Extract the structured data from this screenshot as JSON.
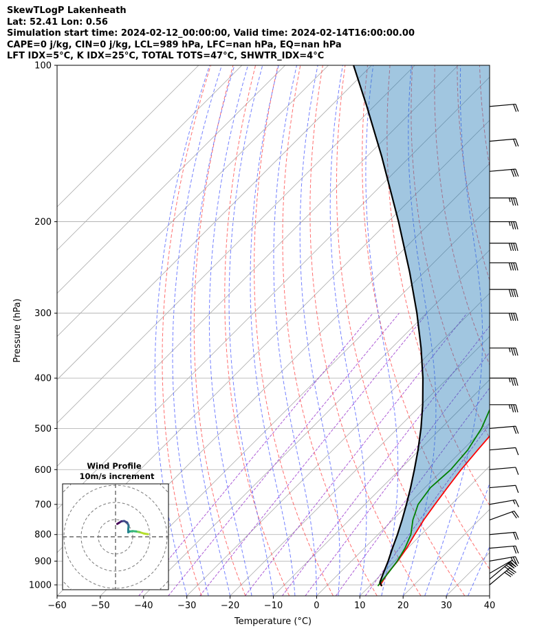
{
  "header": {
    "line1": "SkewTLogP Lakenheath",
    "line2": "Lat: 52.41   Lon: 0.56",
    "line3": "Simulation start time: 2024-02-12_00:00:00, Valid time: 2024-02-14T16:00:00.00",
    "line4": "CAPE=0 j/kg, CIN=0 j/kg, LCL=989 hPa, LFC=nan hPa, EQ=nan hPa",
    "line5": "LFT IDX=5°C, K IDX=25°C, TOTAL TOTS=47°C, SHWTR_IDX=4°C"
  },
  "chart_data": {
    "type": "line",
    "title": "SkewTLogP Lakenheath",
    "xlabel": "Temperature (°C)",
    "ylabel": "Pressure (hPa)",
    "xlim": [
      -60,
      40
    ],
    "ylim": [
      1050,
      100
    ],
    "y_scale": "log",
    "x_ticks": [
      "−60",
      "−50",
      "−40",
      "−30",
      "−20",
      "−10",
      "0",
      "10",
      "20",
      "30",
      "40"
    ],
    "y_ticks": [
      "1000",
      "900",
      "800",
      "700",
      "600",
      "500",
      "400",
      "300",
      "200",
      "100"
    ],
    "grid": true,
    "colors": {
      "temperature": "#ff0000",
      "dewpoint": "#008000",
      "parcel": "#000000",
      "cape_fill": "#1f77b4",
      "dry_adiabat": "#ff5555",
      "moist_adiabat": "#4455ff",
      "mixing_ratio": "#9933cc",
      "isotherm": "#999999"
    },
    "series": [
      {
        "name": "Temperature",
        "points": [
          {
            "p": 1005,
            "t": 12.8
          },
          {
            "p": 1000,
            "t": 12.2
          },
          {
            "p": 950,
            "t": 11.2
          },
          {
            "p": 900,
            "t": 10.7
          },
          {
            "p": 850,
            "t": 9.8
          },
          {
            "p": 800,
            "t": 8.5
          },
          {
            "p": 750,
            "t": 7.2
          },
          {
            "p": 700,
            "t": 6.2
          },
          {
            "p": 650,
            "t": 5.2
          },
          {
            "p": 600,
            "t": 4.2
          },
          {
            "p": 550,
            "t": 3.5
          },
          {
            "p": 500,
            "t": 2.8
          },
          {
            "p": 450,
            "t": 2.2
          },
          {
            "p": 400,
            "t": 0.1
          },
          {
            "p": 350,
            "t": -2.7
          },
          {
            "p": 300,
            "t": -6.6
          },
          {
            "p": 250,
            "t": -10.7
          },
          {
            "p": 230,
            "t": -12.6
          },
          {
            "p": 215,
            "t": -12.9
          },
          {
            "p": 200,
            "t": -10.7
          },
          {
            "p": 185,
            "t": -6.4
          },
          {
            "p": 170,
            "t": -3.7
          },
          {
            "p": 150,
            "t": -1.6
          },
          {
            "p": 130,
            "t": 1.3
          },
          {
            "p": 115,
            "t": 2.9
          },
          {
            "p": 100,
            "t": 3.5
          }
        ]
      },
      {
        "name": "Dewpoint",
        "points": [
          {
            "p": 1005,
            "t": 11.9
          },
          {
            "p": 1000,
            "t": 11.8
          },
          {
            "p": 950,
            "t": 11.3
          },
          {
            "p": 900,
            "t": 10.6
          },
          {
            "p": 850,
            "t": 9.4
          },
          {
            "p": 800,
            "t": 7.6
          },
          {
            "p": 750,
            "t": 4.7
          },
          {
            "p": 700,
            "t": 2.3
          },
          {
            "p": 650,
            "t": 1.3
          },
          {
            "p": 600,
            "t": 1.8
          },
          {
            "p": 550,
            "t": 1.2
          },
          {
            "p": 500,
            "t": -0.6
          },
          {
            "p": 450,
            "t": -3.7
          },
          {
            "p": 400,
            "t": -4.4
          },
          {
            "p": 370,
            "t": -5.6
          },
          {
            "p": 340,
            "t": -8.3
          },
          {
            "p": 310,
            "t": -12.4
          },
          {
            "p": 290,
            "t": -13.6
          },
          {
            "p": 270,
            "t": -14.6
          },
          {
            "p": 250,
            "t": -16.8
          },
          {
            "p": 220,
            "t": -18.6
          },
          {
            "p": 200,
            "t": -18.4
          },
          {
            "p": 185,
            "t": -19.8
          },
          {
            "p": 170,
            "t": -22.6
          },
          {
            "p": 160,
            "t": -23.8
          },
          {
            "p": 150,
            "t": -20.6
          },
          {
            "p": 130,
            "t": -13.5
          },
          {
            "p": 115,
            "t": -8.3
          },
          {
            "p": 100,
            "t": -3.9
          }
        ]
      },
      {
        "name": "Parcel",
        "points": [
          {
            "p": 1005,
            "t": 12.8
          },
          {
            "p": 989,
            "t": 11.5
          },
          {
            "p": 950,
            "t": 10.2
          },
          {
            "p": 900,
            "t": 8.5
          },
          {
            "p": 850,
            "t": 6.5
          },
          {
            "p": 800,
            "t": 4.5
          },
          {
            "p": 750,
            "t": 2.2
          },
          {
            "p": 700,
            "t": -0.4
          },
          {
            "p": 650,
            "t": -3.3
          },
          {
            "p": 600,
            "t": -6.6
          },
          {
            "p": 550,
            "t": -10.3
          },
          {
            "p": 500,
            "t": -14.6
          },
          {
            "p": 450,
            "t": -19.7
          },
          {
            "p": 400,
            "t": -25.8
          },
          {
            "p": 350,
            "t": -33.2
          },
          {
            "p": 300,
            "t": -42.2
          },
          {
            "p": 250,
            "t": -53.4
          },
          {
            "p": 200,
            "t": -67.6
          },
          {
            "p": 150,
            "t": -86.5
          },
          {
            "p": 120,
            "t": -101.6
          },
          {
            "p": 100,
            "t": -114.2
          }
        ]
      }
    ],
    "wind_barbs": [
      {
        "p": 1000,
        "speed_kt": 40,
        "dir_deg": 230
      },
      {
        "p": 975,
        "speed_kt": 35,
        "dir_deg": 230
      },
      {
        "p": 950,
        "speed_kt": 30,
        "dir_deg": 240
      },
      {
        "p": 900,
        "speed_kt": 25,
        "dir_deg": 260
      },
      {
        "p": 850,
        "speed_kt": 20,
        "dir_deg": 265
      },
      {
        "p": 800,
        "speed_kt": 20,
        "dir_deg": 265
      },
      {
        "p": 750,
        "speed_kt": 20,
        "dir_deg": 250
      },
      {
        "p": 700,
        "speed_kt": 15,
        "dir_deg": 260
      },
      {
        "p": 650,
        "speed_kt": 10,
        "dir_deg": 265
      },
      {
        "p": 600,
        "speed_kt": 10,
        "dir_deg": 265
      },
      {
        "p": 550,
        "speed_kt": 10,
        "dir_deg": 265
      },
      {
        "p": 500,
        "speed_kt": 20,
        "dir_deg": 265
      },
      {
        "p": 450,
        "speed_kt": 35,
        "dir_deg": 270
      },
      {
        "p": 400,
        "speed_kt": 35,
        "dir_deg": 270
      },
      {
        "p": 350,
        "speed_kt": 35,
        "dir_deg": 270
      },
      {
        "p": 300,
        "speed_kt": 40,
        "dir_deg": 270
      },
      {
        "p": 270,
        "speed_kt": 40,
        "dir_deg": 270
      },
      {
        "p": 240,
        "speed_kt": 40,
        "dir_deg": 270
      },
      {
        "p": 220,
        "speed_kt": 40,
        "dir_deg": 270
      },
      {
        "p": 200,
        "speed_kt": 35,
        "dir_deg": 270
      },
      {
        "p": 180,
        "speed_kt": 35,
        "dir_deg": 270
      },
      {
        "p": 160,
        "speed_kt": 30,
        "dir_deg": 265
      },
      {
        "p": 140,
        "speed_kt": 20,
        "dir_deg": 265
      },
      {
        "p": 120,
        "speed_kt": 20,
        "dir_deg": 265
      }
    ],
    "hodograph": {
      "title": "Wind Profile",
      "subtitle": "10m/s increment",
      "ring_spacing_ms": 10,
      "points": [
        {
          "u": 18.9,
          "v": 1.5
        },
        {
          "u": 16.5,
          "v": 1.9
        },
        {
          "u": 14.0,
          "v": 2.7
        },
        {
          "u": 12.0,
          "v": 3.1
        },
        {
          "u": 10.0,
          "v": 3.3
        },
        {
          "u": 8.3,
          "v": 3.1
        },
        {
          "u": 7.4,
          "v": 2.6
        },
        {
          "u": 7.4,
          "v": 4.5
        },
        {
          "u": 7.6,
          "v": 6.6
        },
        {
          "u": 6.8,
          "v": 8.3
        },
        {
          "u": 5.0,
          "v": 9.2
        },
        {
          "u": 3.4,
          "v": 9.0
        },
        {
          "u": 2.0,
          "v": 8.1
        },
        {
          "u": 1.0,
          "v": 7.5
        }
      ]
    }
  }
}
